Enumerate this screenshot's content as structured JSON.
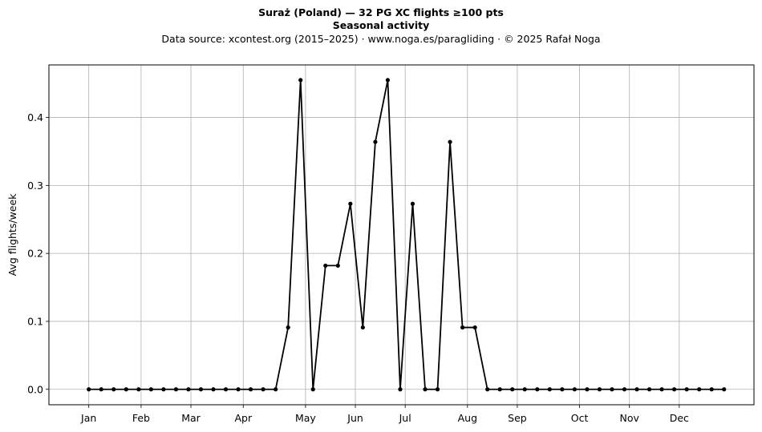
{
  "chart_data": {
    "type": "line",
    "title": "Suraż (Poland)  —  32 PG XC flights ≥100 pts",
    "subtitle": "Seasonal activity",
    "source": "Data source: xcontest.org (2015–2025)  ·  www.noga.es/paragliding  ·  © 2025 Rafał Noga",
    "xlabel": "",
    "ylabel": "Avg flights/week",
    "x_unit": "week of year",
    "xlim": [
      -2.2,
      54.4
    ],
    "ylim": [
      -0.0227,
      0.4773
    ],
    "grid": true,
    "legend": "none",
    "month_ticks": [
      {
        "label": "Jan",
        "week": 1
      },
      {
        "label": "Feb",
        "week": 5.2
      },
      {
        "label": "Mar",
        "week": 9.2
      },
      {
        "label": "Apr",
        "week": 13.4
      },
      {
        "label": "May",
        "week": 18.4
      },
      {
        "label": "Jun",
        "week": 22.4
      },
      {
        "label": "Jul",
        "week": 26.4
      },
      {
        "label": "Aug",
        "week": 31.4
      },
      {
        "label": "Sep",
        "week": 35.4
      },
      {
        "label": "Oct",
        "week": 40.4
      },
      {
        "label": "Nov",
        "week": 44.4
      },
      {
        "label": "Dec",
        "week": 48.4
      }
    ],
    "y_ticks": [
      {
        "label": "0.0",
        "value": 0
      },
      {
        "label": "0.1",
        "value": 0.1
      },
      {
        "label": "0.2",
        "value": 0.2
      },
      {
        "label": "0.3",
        "value": 0.3
      },
      {
        "label": "0.4",
        "value": 0.4
      }
    ],
    "series": [
      {
        "color": "#000000",
        "x": [
          1,
          2,
          3,
          4,
          5,
          6,
          7,
          8,
          9,
          10,
          11,
          12,
          13,
          14,
          15,
          16,
          17,
          18,
          19,
          20,
          21,
          22,
          23,
          24,
          25,
          26,
          27,
          28,
          29,
          30,
          31,
          32,
          33,
          34,
          35,
          36,
          37,
          38,
          39,
          40,
          41,
          42,
          43,
          44,
          45,
          46,
          47,
          48,
          49,
          50,
          51,
          52
        ],
        "values": [
          0,
          0,
          0,
          0,
          0,
          0,
          0,
          0,
          0,
          0,
          0,
          0,
          0,
          0,
          0,
          0,
          0.091,
          0.455,
          0,
          0.182,
          0.182,
          0.273,
          0.091,
          0.364,
          0.455,
          0,
          0.273,
          0,
          0,
          0.364,
          0.091,
          0.091,
          0,
          0,
          0,
          0,
          0,
          0,
          0,
          0,
          0,
          0,
          0,
          0,
          0,
          0,
          0,
          0,
          0,
          0,
          0,
          0
        ]
      }
    ]
  }
}
